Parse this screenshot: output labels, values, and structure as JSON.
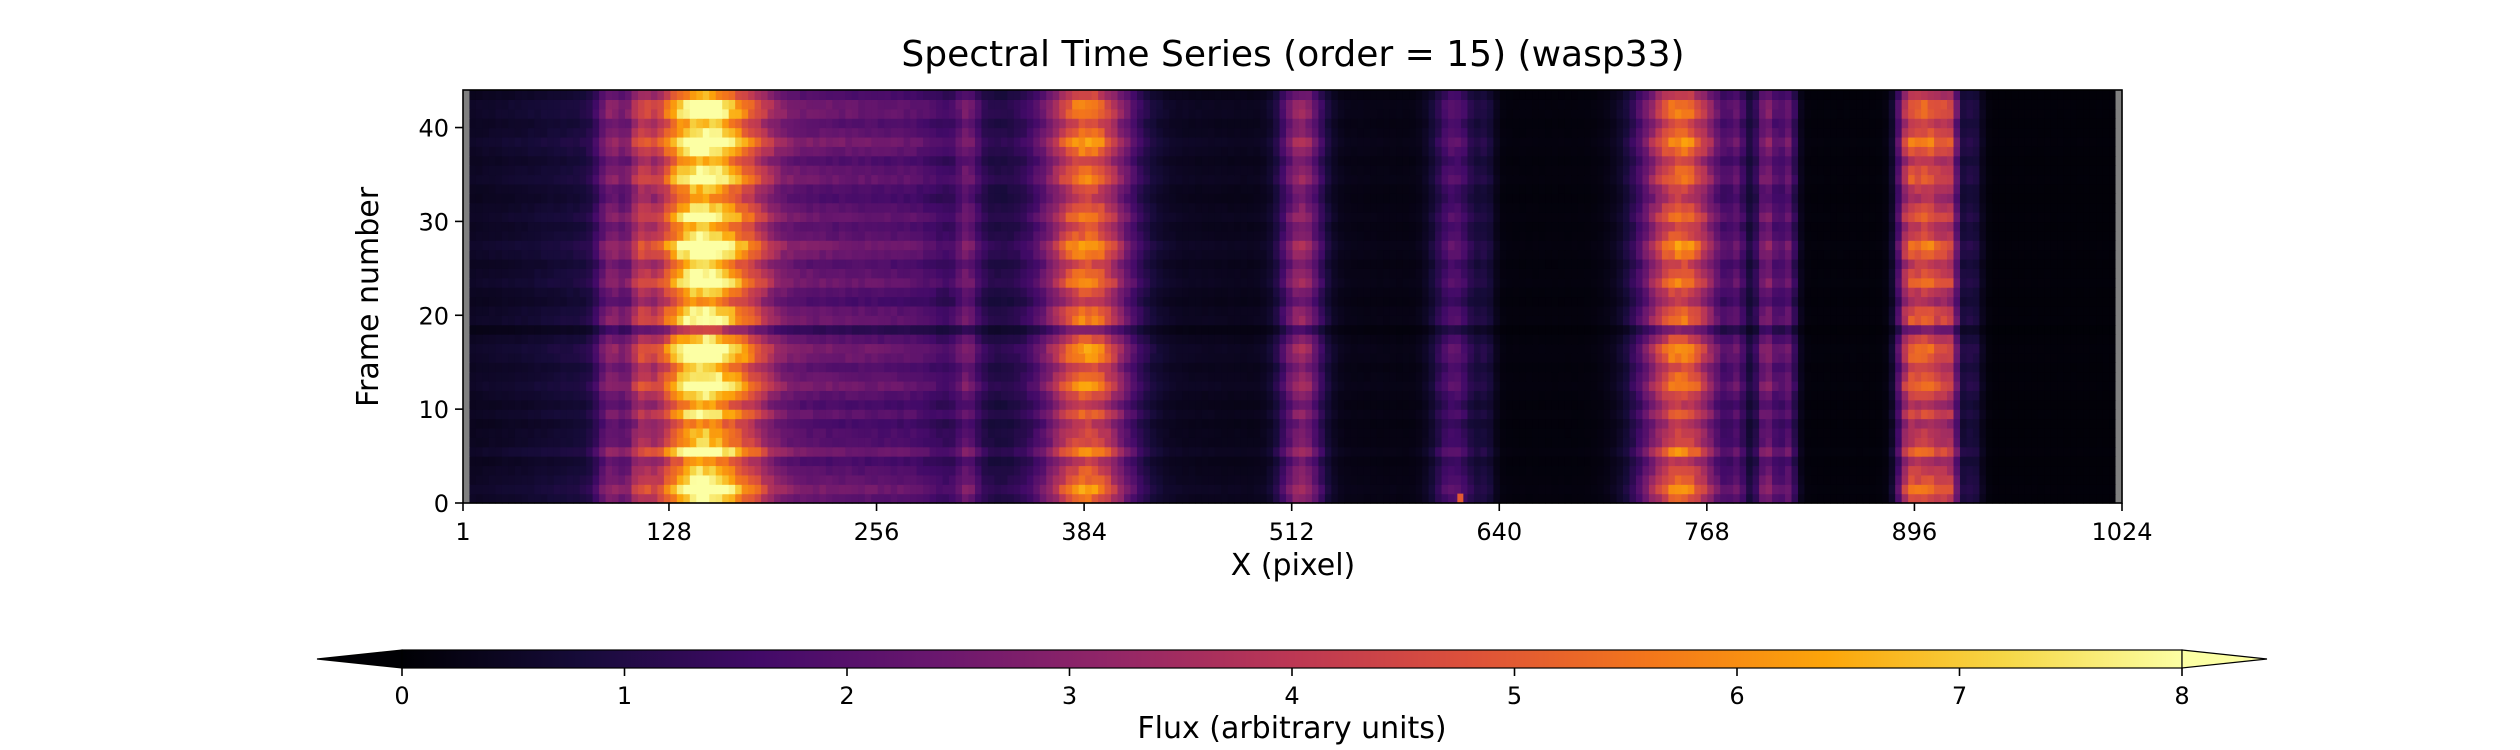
{
  "chart_data": {
    "type": "heatmap",
    "title": "Spectral Time Series (order = 15) (wasp33)",
    "xlabel": "X (pixel)",
    "ylabel": "Frame number",
    "xlim": [
      1,
      1024
    ],
    "ylim": [
      0,
      44
    ],
    "x_ticks": [
      1,
      128,
      256,
      384,
      512,
      640,
      768,
      896,
      1024
    ],
    "y_ticks": [
      0,
      10,
      20,
      30,
      40
    ],
    "n_frames": 44,
    "colormap": "inferno",
    "grid": false,
    "colorbar": {
      "label": "Flux (arbitrary units)",
      "range": [
        0,
        8
      ],
      "ticks": [
        0,
        1,
        2,
        3,
        4,
        5,
        6,
        7,
        8
      ],
      "extend": "both",
      "orientation": "horizontal",
      "position": "bottom"
    },
    "masked_edge_color": "#808080",
    "masked_columns": [
      [
        1,
        4
      ],
      [
        1020,
        1024
      ]
    ],
    "continuum_profile": [
      {
        "x": 1,
        "flux": 0.5
      },
      {
        "x": 40,
        "flux": 0.7
      },
      {
        "x": 80,
        "flux": 1.0
      },
      {
        "x": 200,
        "flux": 2.6
      },
      {
        "x": 280,
        "flux": 2.2
      },
      {
        "x": 300,
        "flux": 1.6
      },
      {
        "x": 330,
        "flux": 1.1
      },
      {
        "x": 420,
        "flux": 0.5
      },
      {
        "x": 520,
        "flux": 0.35
      },
      {
        "x": 640,
        "flux": 0.15
      },
      {
        "x": 1024,
        "flux": 0.08
      }
    ],
    "emission_bands": [
      {
        "center": 92,
        "width": 6,
        "flux": 1.8
      },
      {
        "center": 110,
        "width": 5,
        "flux": 2.0
      },
      {
        "center": 148,
        "width": 20,
        "flux": 6.8
      },
      {
        "center": 180,
        "width": 10,
        "flux": 1.0
      },
      {
        "center": 312,
        "width": 5,
        "flux": 1.3
      },
      {
        "center": 386,
        "width": 18,
        "flux": 5.2
      },
      {
        "center": 518,
        "width": 9,
        "flux": 3.1
      },
      {
        "center": 612,
        "width": 9,
        "flux": 1.9
      },
      {
        "center": 632,
        "width": 4,
        "flux": 0.7
      },
      {
        "center": 752,
        "width": 17,
        "flux": 5.6
      },
      {
        "center": 787,
        "width": 4,
        "flux": 1.5
      },
      {
        "center": 805,
        "width": 5,
        "flux": 2.8
      },
      {
        "center": 818,
        "width": 4,
        "flux": 2.2
      },
      {
        "center": 892,
        "width": 5,
        "flux": 3.2
      },
      {
        "center": 905,
        "width": 8,
        "flux": 5.0
      },
      {
        "center": 918,
        "width": 4,
        "flux": 3.0
      },
      {
        "center": 932,
        "width": 4,
        "flux": 1.0
      }
    ],
    "dim_frames": [
      {
        "frame": 4,
        "factor": 0.7
      },
      {
        "frame": 8,
        "factor": 0.72
      },
      {
        "frame": 18,
        "factor": 0.65
      },
      {
        "frame": 31,
        "factor": 0.9
      }
    ],
    "hot_pixels": [
      {
        "x": 382,
        "frame": 16,
        "flux": 6.0
      },
      {
        "x": 616,
        "frame": 0,
        "flux": 5.0
      }
    ]
  }
}
